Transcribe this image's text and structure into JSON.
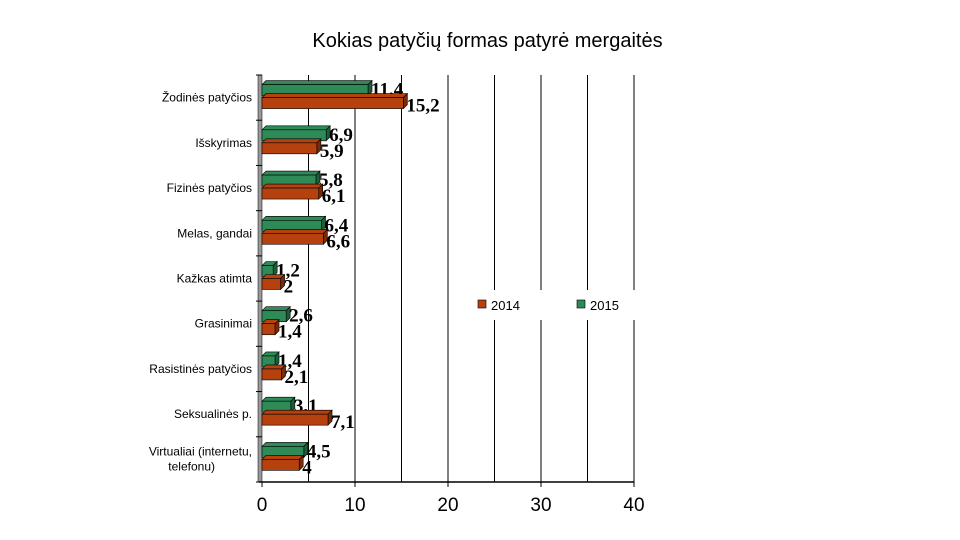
{
  "chart_data": {
    "type": "bar",
    "orientation": "horizontal",
    "title": "Kokias patyčių formas patyrė mergaitės",
    "categories": [
      "Žodinės patyčios",
      "Išskyrimas",
      "Fizinės patyčios",
      "Melas, gandai",
      "Kažkas atimta",
      "Grasinimai",
      "Rasistinės patyčios",
      "Seksualinės p.",
      "Virtualiai (internetu, telefonu)"
    ],
    "series": [
      {
        "name": "2015",
        "color": "#2e8b57",
        "values": [
          11.4,
          6.9,
          5.8,
          6.4,
          1.2,
          2.6,
          1.4,
          3.1,
          4.5
        ],
        "labels": [
          "11,4",
          "6,9",
          "5,8",
          "6,4",
          "1,2",
          "2,6",
          "1,4",
          "3,1",
          "4,5"
        ]
      },
      {
        "name": "2014",
        "color": "#b5410f",
        "values": [
          15.2,
          5.9,
          6.1,
          6.6,
          2,
          1.4,
          2.1,
          7.1,
          4
        ],
        "labels": [
          "15,2",
          "5,9",
          "6,1",
          "6,6",
          "2",
          "1,4",
          "2,1",
          "7,1",
          "4"
        ]
      }
    ],
    "xlim": [
      0,
      40
    ],
    "xticks": [
      0,
      10,
      20,
      30,
      40
    ],
    "grid": "vertical every 5",
    "legend": {
      "placement": "right",
      "entries": [
        "2014",
        "2015"
      ]
    }
  }
}
